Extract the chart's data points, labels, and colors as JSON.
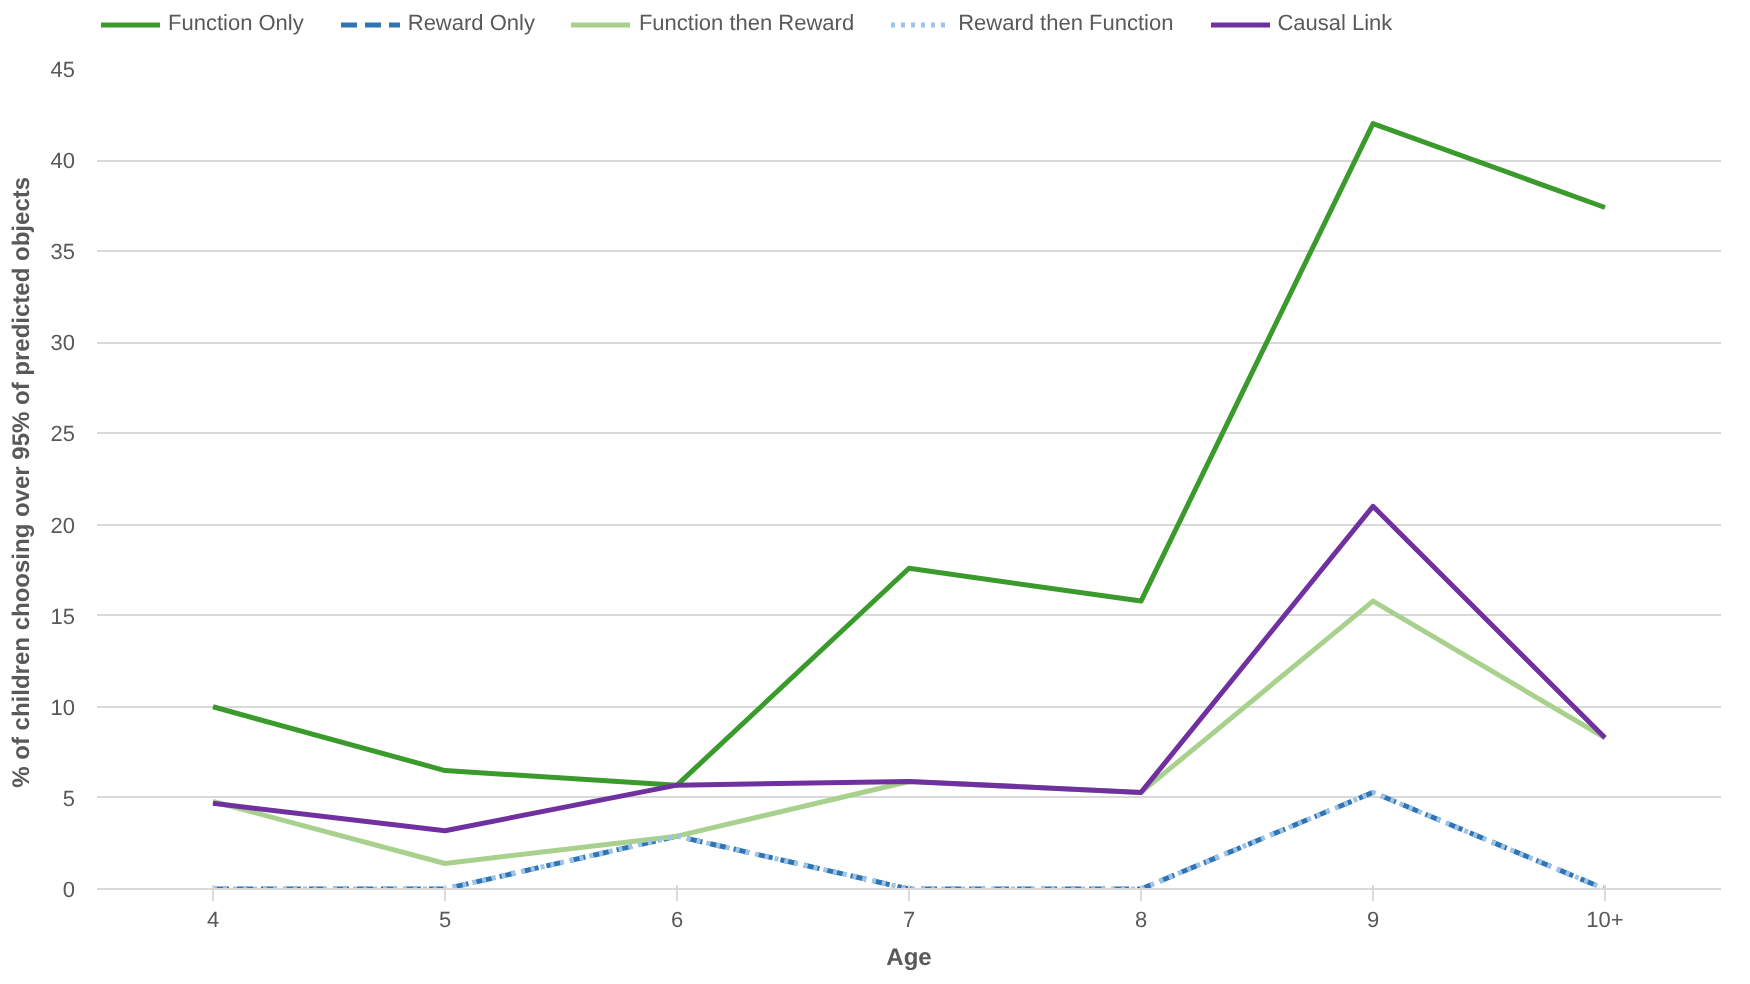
{
  "chart_data": {
    "type": "line",
    "xlabel": "Age",
    "ylabel": "% of children choosing over 95% of predicted  objects",
    "categories": [
      "4",
      "5",
      "6",
      "7",
      "8",
      "9",
      "10+"
    ],
    "ylim": [
      0,
      45
    ],
    "yticks": [
      0,
      5,
      10,
      15,
      20,
      25,
      30,
      35,
      40,
      45
    ],
    "grid": "y",
    "legend": "top",
    "marker": "none",
    "series": [
      {
        "name": "Function Only",
        "color": "#3a9a2c",
        "line_style": "solid",
        "values": [
          10,
          6.5,
          5.7,
          17.6,
          15.8,
          42,
          37.4
        ]
      },
      {
        "name": "Reward Only",
        "color": "#2e75b6",
        "line_style": "dashed",
        "values": [
          0,
          0,
          2.9,
          0,
          0,
          5.3,
          0
        ]
      },
      {
        "name": "Function then Reward",
        "color": "#a9d18e",
        "line_style": "solid",
        "values": [
          4.8,
          1.4,
          2.9,
          5.9,
          5.3,
          15.8,
          8.3
        ]
      },
      {
        "name": "Reward then Function",
        "color": "#9dc3e6",
        "line_style": "dotted",
        "values": [
          0,
          0,
          2.9,
          0,
          0,
          5.3,
          0
        ]
      },
      {
        "name": "Causal Link",
        "color": "#7030a0",
        "line_style": "solid",
        "values": [
          4.7,
          3.2,
          5.7,
          5.9,
          5.3,
          21,
          8.3
        ]
      }
    ]
  }
}
